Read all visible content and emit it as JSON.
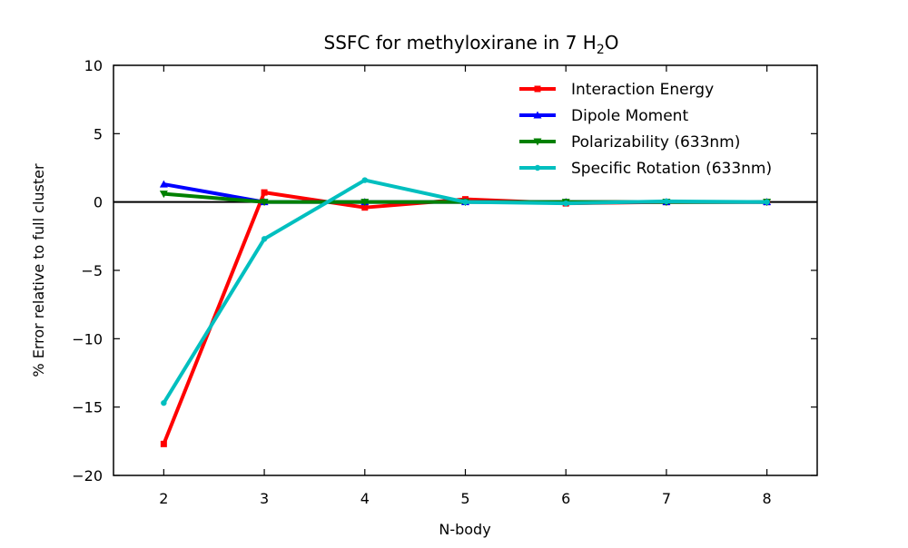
{
  "chart_data": {
    "type": "line",
    "title_main": "SSFC for methyloxirane in 7 H",
    "title_sub": "2",
    "title_end": "O",
    "xlabel": "N-body",
    "ylabel": "% Error relative to full cluster",
    "x": [
      2,
      3,
      4,
      5,
      6,
      7,
      8
    ],
    "xlim": [
      1.5,
      8.5
    ],
    "ylim": [
      -20,
      10
    ],
    "xticks": [
      2,
      3,
      4,
      5,
      6,
      7,
      8
    ],
    "yticks": [
      -20,
      -15,
      -10,
      -5,
      0,
      5,
      10
    ],
    "xtick_labels": [
      "2",
      "3",
      "4",
      "5",
      "6",
      "7",
      "8"
    ],
    "ytick_labels": [
      "−20",
      "−15",
      "−10",
      "−5",
      "0",
      "5",
      "10"
    ],
    "zero_line": true,
    "grid": false,
    "legend_position": "top-right",
    "series": [
      {
        "name": "Interaction Energy",
        "color": "#ff0000",
        "marker": "square",
        "values": [
          -17.7,
          0.7,
          -0.4,
          0.2,
          -0.1,
          0.0,
          0.0
        ]
      },
      {
        "name": "Dipole Moment",
        "color": "#0000ff",
        "marker": "triangle-up",
        "values": [
          1.3,
          0.0,
          0.0,
          0.0,
          0.0,
          0.0,
          0.0
        ]
      },
      {
        "name": "Polarizability (633nm)",
        "color": "#008000",
        "marker": "triangle-down",
        "values": [
          0.6,
          0.0,
          0.0,
          0.0,
          0.0,
          0.0,
          0.0
        ]
      },
      {
        "name": "Specific Rotation (633nm)",
        "color": "#00bfbf",
        "marker": "circle",
        "values": [
          -14.7,
          -2.7,
          1.6,
          0.0,
          -0.1,
          0.05,
          0.0
        ]
      }
    ]
  }
}
